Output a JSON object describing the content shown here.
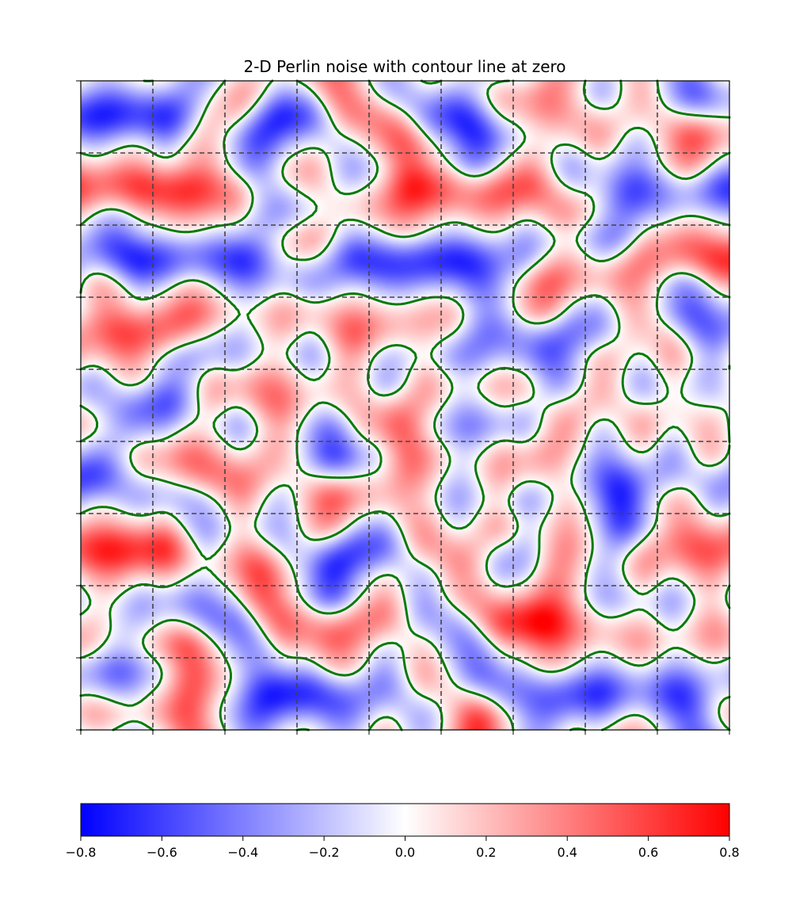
{
  "chart_data": {
    "type": "heatmap",
    "title": "2-D Perlin noise with contour line at zero",
    "xlabel": "",
    "ylabel": "",
    "grid": "on",
    "grid_cells": [
      9,
      9
    ],
    "contour": {
      "level": 0.0,
      "color": "#0b7a0b"
    },
    "colormap": {
      "name": "bwr",
      "low": "#0000ff",
      "mid": "#ffffff",
      "high": "#ff0000"
    },
    "colorbar": {
      "vmin": -0.8,
      "vmax": 0.8,
      "ticks": [
        -0.8,
        -0.6,
        -0.4,
        -0.2,
        0.0,
        0.2,
        0.4,
        0.6,
        0.8
      ],
      "tick_labels": [
        "−0.8",
        "−0.6",
        "−0.4",
        "−0.2",
        "0.0",
        "0.2",
        "0.4",
        "0.6",
        "0.8"
      ],
      "orientation": "horizontal"
    }
  }
}
